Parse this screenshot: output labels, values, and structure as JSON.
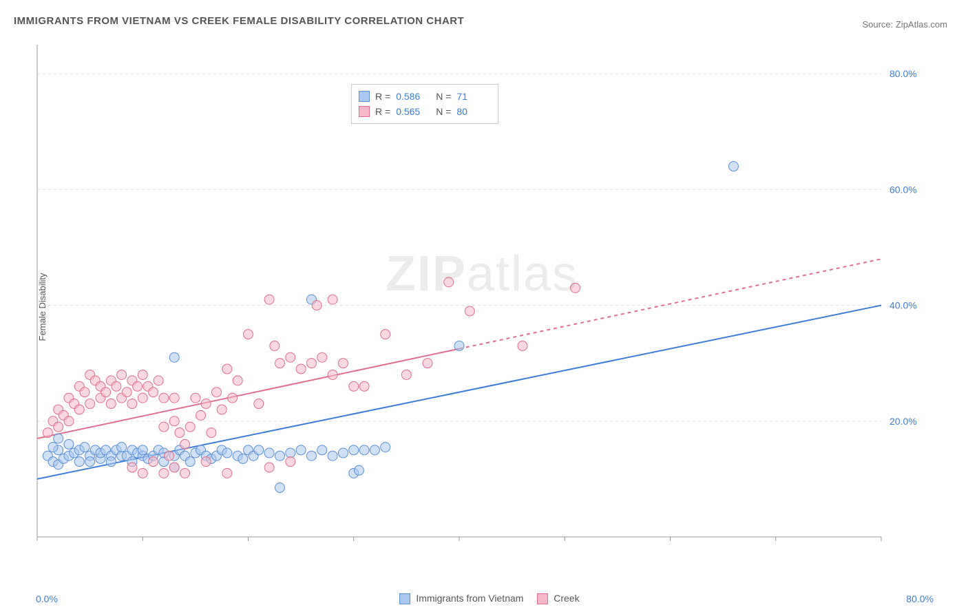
{
  "title": "IMMIGRANTS FROM VIETNAM VS CREEK FEMALE DISABILITY CORRELATION CHART",
  "source_label": "Source: ",
  "source_name": "ZipAtlas.com",
  "ylabel": "Female Disability",
  "watermark_bold": "ZIP",
  "watermark_light": "atlas",
  "chart": {
    "type": "scatter",
    "background_color": "#ffffff",
    "grid_color": "#e0e0e0",
    "axis_color": "#999999",
    "xlim": [
      0,
      80
    ],
    "ylim": [
      0,
      85
    ],
    "x_origin_label": "0.0%",
    "x_max_label": "80.0%",
    "x_ticks": [
      0,
      10,
      20,
      30,
      40,
      50,
      60,
      70,
      80
    ],
    "y_ticks": [
      20,
      40,
      60,
      80
    ],
    "y_tick_labels": [
      "20.0%",
      "40.0%",
      "60.0%",
      "80.0%"
    ],
    "tick_color": "#3b7dd8",
    "tick_fontsize": 14,
    "marker_radius": 7,
    "marker_opacity": 0.55,
    "series": [
      {
        "name": "Immigrants from Vietnam",
        "color_fill": "#a9c8ef",
        "color_stroke": "#5a8fd6",
        "R_label": "R =",
        "R": "0.586",
        "N_label": "N =",
        "N": "71",
        "trend": {
          "x1": 0,
          "y1": 10,
          "x2": 80,
          "y2": 40,
          "solid_until_x": 80,
          "stroke": "#3b7dd8",
          "width": 2
        },
        "points": [
          [
            1,
            14
          ],
          [
            1.5,
            13
          ],
          [
            2,
            15
          ],
          [
            2,
            12.5
          ],
          [
            2.5,
            13.5
          ],
          [
            3,
            14
          ],
          [
            3,
            16
          ],
          [
            3.5,
            14.5
          ],
          [
            4,
            13
          ],
          [
            4,
            15
          ],
          [
            4.5,
            15.5
          ],
          [
            5,
            14
          ],
          [
            5,
            13
          ],
          [
            5.5,
            15
          ],
          [
            6,
            13.5
          ],
          [
            6,
            14.5
          ],
          [
            6.5,
            15
          ],
          [
            7,
            14
          ],
          [
            7,
            13
          ],
          [
            7.5,
            15
          ],
          [
            8,
            14
          ],
          [
            8,
            15.5
          ],
          [
            8.5,
            14
          ],
          [
            9,
            15
          ],
          [
            9,
            13
          ],
          [
            9.5,
            14.5
          ],
          [
            10,
            14
          ],
          [
            10,
            15
          ],
          [
            10.5,
            13.5
          ],
          [
            11,
            14
          ],
          [
            11.5,
            15
          ],
          [
            12,
            13
          ],
          [
            12,
            14.5
          ],
          [
            13,
            14
          ],
          [
            13,
            12
          ],
          [
            13.5,
            15
          ],
          [
            14,
            14
          ],
          [
            14.5,
            13
          ],
          [
            15,
            14.5
          ],
          [
            15.5,
            15
          ],
          [
            16,
            14
          ],
          [
            16.5,
            13.5
          ],
          [
            17,
            14
          ],
          [
            17.5,
            15
          ],
          [
            18,
            14.5
          ],
          [
            19,
            14
          ],
          [
            19.5,
            13.5
          ],
          [
            20,
            15
          ],
          [
            20.5,
            14
          ],
          [
            21,
            15
          ],
          [
            22,
            14.5
          ],
          [
            23,
            14
          ],
          [
            24,
            14.5
          ],
          [
            25,
            15
          ],
          [
            26,
            14
          ],
          [
            27,
            15
          ],
          [
            28,
            14
          ],
          [
            29,
            14.5
          ],
          [
            30,
            15
          ],
          [
            30,
            11
          ],
          [
            30.5,
            11.5
          ],
          [
            31,
            15
          ],
          [
            32,
            15
          ],
          [
            33,
            15.5
          ],
          [
            13,
            31
          ],
          [
            23,
            8.5
          ],
          [
            26,
            41
          ],
          [
            40,
            33
          ],
          [
            66,
            64
          ],
          [
            2,
            17
          ],
          [
            1.5,
            15.5
          ]
        ]
      },
      {
        "name": "Creek",
        "color_fill": "#f5b8c8",
        "color_stroke": "#e06e8c",
        "R_label": "R =",
        "R": "0.565",
        "N_label": "N =",
        "N": "80",
        "trend": {
          "x1": 0,
          "y1": 17,
          "x2": 80,
          "y2": 48,
          "solid_until_x": 40,
          "stroke": "#e06e8c",
          "width": 2
        },
        "points": [
          [
            1,
            18
          ],
          [
            1.5,
            20
          ],
          [
            2,
            22
          ],
          [
            2,
            19
          ],
          [
            2.5,
            21
          ],
          [
            3,
            24
          ],
          [
            3,
            20
          ],
          [
            3.5,
            23
          ],
          [
            4,
            26
          ],
          [
            4,
            22
          ],
          [
            4.5,
            25
          ],
          [
            5,
            28
          ],
          [
            5,
            23
          ],
          [
            5.5,
            27
          ],
          [
            6,
            24
          ],
          [
            6,
            26
          ],
          [
            6.5,
            25
          ],
          [
            7,
            27
          ],
          [
            7,
            23
          ],
          [
            7.5,
            26
          ],
          [
            8,
            24
          ],
          [
            8,
            28
          ],
          [
            8.5,
            25
          ],
          [
            9,
            27
          ],
          [
            9,
            23
          ],
          [
            9.5,
            26
          ],
          [
            10,
            28
          ],
          [
            10,
            24
          ],
          [
            10.5,
            26
          ],
          [
            11,
            25
          ],
          [
            11.5,
            27
          ],
          [
            12,
            24
          ],
          [
            12,
            19
          ],
          [
            12.5,
            14
          ],
          [
            13,
            20
          ],
          [
            13,
            24
          ],
          [
            13.5,
            18
          ],
          [
            14,
            16
          ],
          [
            14.5,
            19
          ],
          [
            15,
            24
          ],
          [
            15.5,
            21
          ],
          [
            16,
            23
          ],
          [
            16.5,
            18
          ],
          [
            17,
            25
          ],
          [
            17.5,
            22
          ],
          [
            18,
            29
          ],
          [
            18.5,
            24
          ],
          [
            19,
            27
          ],
          [
            20,
            35
          ],
          [
            21,
            23
          ],
          [
            22,
            41
          ],
          [
            22.5,
            33
          ],
          [
            23,
            30
          ],
          [
            24,
            31
          ],
          [
            25,
            29
          ],
          [
            26,
            30
          ],
          [
            27,
            31
          ],
          [
            28,
            28
          ],
          [
            29,
            30
          ],
          [
            30,
            26
          ],
          [
            9,
            12
          ],
          [
            10,
            11
          ],
          [
            11,
            13
          ],
          [
            12,
            11
          ],
          [
            13,
            12
          ],
          [
            14,
            11
          ],
          [
            16,
            13
          ],
          [
            18,
            11
          ],
          [
            22,
            12
          ],
          [
            24,
            13
          ],
          [
            26.5,
            40
          ],
          [
            28,
            41
          ],
          [
            31,
            26
          ],
          [
            33,
            35
          ],
          [
            35,
            28
          ],
          [
            37,
            30
          ],
          [
            39,
            44
          ],
          [
            41,
            39
          ],
          [
            46,
            33
          ],
          [
            51,
            43
          ]
        ]
      }
    ]
  },
  "bottom_legend": {
    "series1": "Immigrants from Vietnam",
    "series2": "Creek"
  }
}
